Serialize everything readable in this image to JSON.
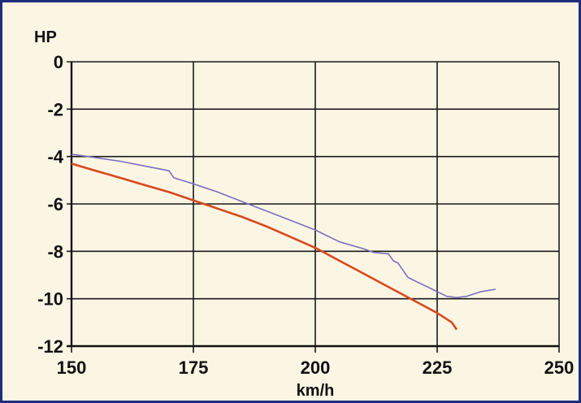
{
  "chart_data": {
    "type": "line",
    "title": "",
    "xlabel": "km/h",
    "ylabel": "HP",
    "xlim": [
      150,
      250
    ],
    "ylim": [
      -12,
      0
    ],
    "x_ticks": [
      "150",
      "175",
      "200",
      "225",
      "250"
    ],
    "y_ticks": [
      "0",
      "-2",
      "-4",
      "-6",
      "-8",
      "-10",
      "-12"
    ],
    "grid": true,
    "legend": "none",
    "series": [
      {
        "color": "#7b6fc0",
        "x": [
          150,
          155,
          160,
          165,
          170,
          171,
          175,
          180,
          185,
          190,
          195,
          200,
          205,
          210,
          212,
          215,
          216,
          217,
          219,
          221,
          224,
          227,
          229,
          231,
          234,
          237
        ],
        "y": [
          -3.9,
          -4.05,
          -4.2,
          -4.4,
          -4.6,
          -4.9,
          -5.15,
          -5.5,
          -5.9,
          -6.3,
          -6.7,
          -7.1,
          -7.6,
          -7.9,
          -8.05,
          -8.1,
          -8.4,
          -8.5,
          -9.1,
          -9.3,
          -9.6,
          -9.9,
          -9.95,
          -9.9,
          -9.7,
          -9.6
        ]
      },
      {
        "color": "#d9481e",
        "x": [
          150,
          155,
          160,
          165,
          170,
          175,
          180,
          185,
          190,
          195,
          200,
          205,
          210,
          215,
          220,
          225,
          228,
          229
        ],
        "y": [
          -4.3,
          -4.6,
          -4.9,
          -5.2,
          -5.5,
          -5.85,
          -6.2,
          -6.55,
          -6.95,
          -7.4,
          -7.85,
          -8.4,
          -8.95,
          -9.5,
          -10.05,
          -10.6,
          -11.0,
          -11.3
        ]
      }
    ]
  }
}
